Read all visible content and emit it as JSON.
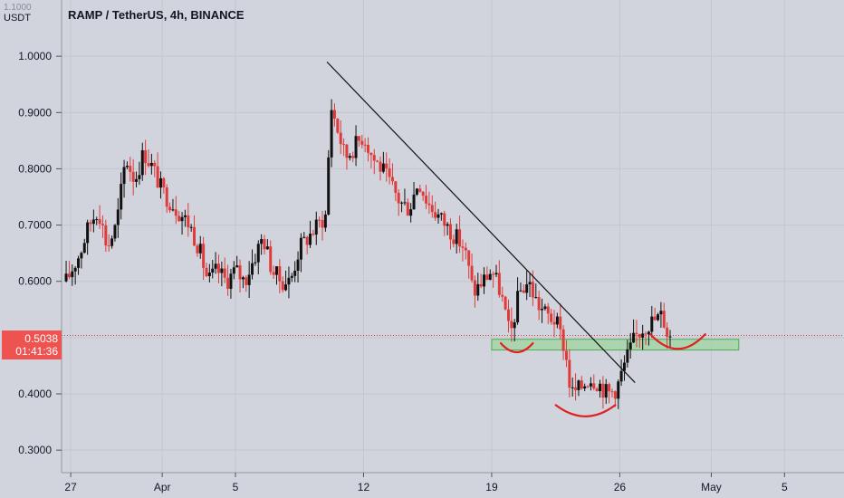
{
  "header": {
    "unit": "USDT",
    "top_label": "1.1000",
    "title": "RAMP / TetherUS, 4h, BINANCE"
  },
  "price_badge": {
    "price": "0.5038",
    "countdown": "01:41:36"
  },
  "colors": {
    "up": "#111111",
    "down": "#e03b3b",
    "background": "#d1d4dc",
    "grid": "#c3c6cf",
    "zone_fill": "#9fd49f",
    "zone_border": "#4caf50",
    "trendline": "#111111",
    "annotation": "#e02020"
  },
  "chart_data": {
    "type": "candlestick",
    "title": "RAMP / TetherUS, 4h, BINANCE",
    "ylabel": "USDT",
    "ylim": [
      0.26,
      1.1
    ],
    "y_ticks": [
      0.3,
      0.4,
      0.5,
      0.6,
      0.7,
      0.8,
      0.9,
      1.0
    ],
    "y_tick_labels": [
      "0.3000",
      "0.4000",
      "0.5000",
      "0.6000",
      "0.7000",
      "0.8000",
      "0.9000",
      "1.0000"
    ],
    "x_ticks": [
      {
        "label": "27",
        "date": "2021-03-27"
      },
      {
        "label": "Apr",
        "date": "2021-04-01"
      },
      {
        "label": "5",
        "date": "2021-04-05"
      },
      {
        "label": "12",
        "date": "2021-04-12"
      },
      {
        "label": "19",
        "date": "2021-04-19"
      },
      {
        "label": "26",
        "date": "2021-04-26"
      },
      {
        "label": "May",
        "date": "2021-05-01"
      },
      {
        "label": "5",
        "date": "2021-05-05"
      }
    ],
    "x_range": [
      "2021-03-27",
      "2021-05-08"
    ],
    "close_path": [
      [
        "2021-03-26 18:00",
        0.6
      ],
      [
        "2021-03-27 12:00",
        0.65
      ],
      [
        "2021-03-28 00:00",
        0.7
      ],
      [
        "2021-03-28 12:00",
        0.73
      ],
      [
        "2021-03-29 00:00",
        0.66
      ],
      [
        "2021-03-29 12:00",
        0.7
      ],
      [
        "2021-03-30 00:00",
        0.82
      ],
      [
        "2021-03-30 12:00",
        0.78
      ],
      [
        "2021-03-31 00:00",
        0.83
      ],
      [
        "2021-03-31 12:00",
        0.8
      ],
      [
        "2021-04-01 00:00",
        0.76
      ],
      [
        "2021-04-01 12:00",
        0.74
      ],
      [
        "2021-04-02 00:00",
        0.72
      ],
      [
        "2021-04-02 12:00",
        0.7
      ],
      [
        "2021-04-03 00:00",
        0.66
      ],
      [
        "2021-04-03 12:00",
        0.6
      ],
      [
        "2021-04-04 00:00",
        0.62
      ],
      [
        "2021-04-04 12:00",
        0.6
      ],
      [
        "2021-04-05 00:00",
        0.62
      ],
      [
        "2021-04-05 12:00",
        0.6
      ],
      [
        "2021-04-06 00:00",
        0.64
      ],
      [
        "2021-04-06 12:00",
        0.68
      ],
      [
        "2021-04-07 00:00",
        0.62
      ],
      [
        "2021-04-07 12:00",
        0.6
      ],
      [
        "2021-04-08 00:00",
        0.6
      ],
      [
        "2021-04-08 12:00",
        0.66
      ],
      [
        "2021-04-09 00:00",
        0.68
      ],
      [
        "2021-04-09 12:00",
        0.7
      ],
      [
        "2021-04-10 00:00",
        0.72
      ],
      [
        "2021-04-10 04:00",
        0.92
      ],
      [
        "2021-04-10 12:00",
        0.88
      ],
      [
        "2021-04-11 00:00",
        0.82
      ],
      [
        "2021-04-11 12:00",
        0.84
      ],
      [
        "2021-04-12 00:00",
        0.86
      ],
      [
        "2021-04-12 12:00",
        0.82
      ],
      [
        "2021-04-13 00:00",
        0.8
      ],
      [
        "2021-04-13 12:00",
        0.77
      ],
      [
        "2021-04-14 00:00",
        0.74
      ],
      [
        "2021-04-14 12:00",
        0.73
      ],
      [
        "2021-04-15 00:00",
        0.78
      ],
      [
        "2021-04-15 12:00",
        0.74
      ],
      [
        "2021-04-16 00:00",
        0.72
      ],
      [
        "2021-04-16 12:00",
        0.7
      ],
      [
        "2021-04-17 00:00",
        0.68
      ],
      [
        "2021-04-17 12:00",
        0.66
      ],
      [
        "2021-04-18 00:00",
        0.58
      ],
      [
        "2021-04-18 12:00",
        0.6
      ],
      [
        "2021-04-19 00:00",
        0.62
      ],
      [
        "2021-04-19 12:00",
        0.58
      ],
      [
        "2021-04-20 00:00",
        0.5
      ],
      [
        "2021-04-20 12:00",
        0.58
      ],
      [
        "2021-04-21 00:00",
        0.6
      ],
      [
        "2021-04-21 12:00",
        0.56
      ],
      [
        "2021-04-22 00:00",
        0.54
      ],
      [
        "2021-04-22 12:00",
        0.53
      ],
      [
        "2021-04-23 00:00",
        0.48
      ],
      [
        "2021-04-23 08:00",
        0.4
      ],
      [
        "2021-04-23 20:00",
        0.41
      ],
      [
        "2021-04-24 08:00",
        0.43
      ],
      [
        "2021-04-24 20:00",
        0.42
      ],
      [
        "2021-04-25 08:00",
        0.4
      ],
      [
        "2021-04-25 20:00",
        0.41
      ],
      [
        "2021-04-26 08:00",
        0.46
      ],
      [
        "2021-04-26 20:00",
        0.5
      ],
      [
        "2021-04-27 08:00",
        0.52
      ],
      [
        "2021-04-27 20:00",
        0.53
      ],
      [
        "2021-04-28 08:00",
        0.54
      ],
      [
        "2021-04-28 16:00",
        0.5
      ],
      [
        "2021-04-28 20:00",
        0.5038
      ]
    ],
    "last_price": 0.5038,
    "trendline": {
      "start": [
        "2021-04-10 00:00",
        0.99
      ],
      "end": [
        "2021-04-26 20:00",
        0.42
      ]
    },
    "support_zone": {
      "x_start": "2021-04-19 00:00",
      "x_end": "2021-05-02 12:00",
      "y_low": 0.478,
      "y_high": 0.497
    },
    "annotations": [
      {
        "type": "arc",
        "x_start": "2021-04-19 12:00",
        "x_end": "2021-04-21 06:00",
        "y_top": 0.49,
        "y_bottom": 0.474
      },
      {
        "type": "arc",
        "x_start": "2021-04-22 12:00",
        "x_end": "2021-04-25 18:00",
        "y_top": 0.38,
        "y_bottom": 0.36
      },
      {
        "type": "arc",
        "x_start": "2021-04-27 16:00",
        "x_end": "2021-04-30 16:00",
        "y_top": 0.506,
        "y_bottom": 0.48
      }
    ]
  }
}
